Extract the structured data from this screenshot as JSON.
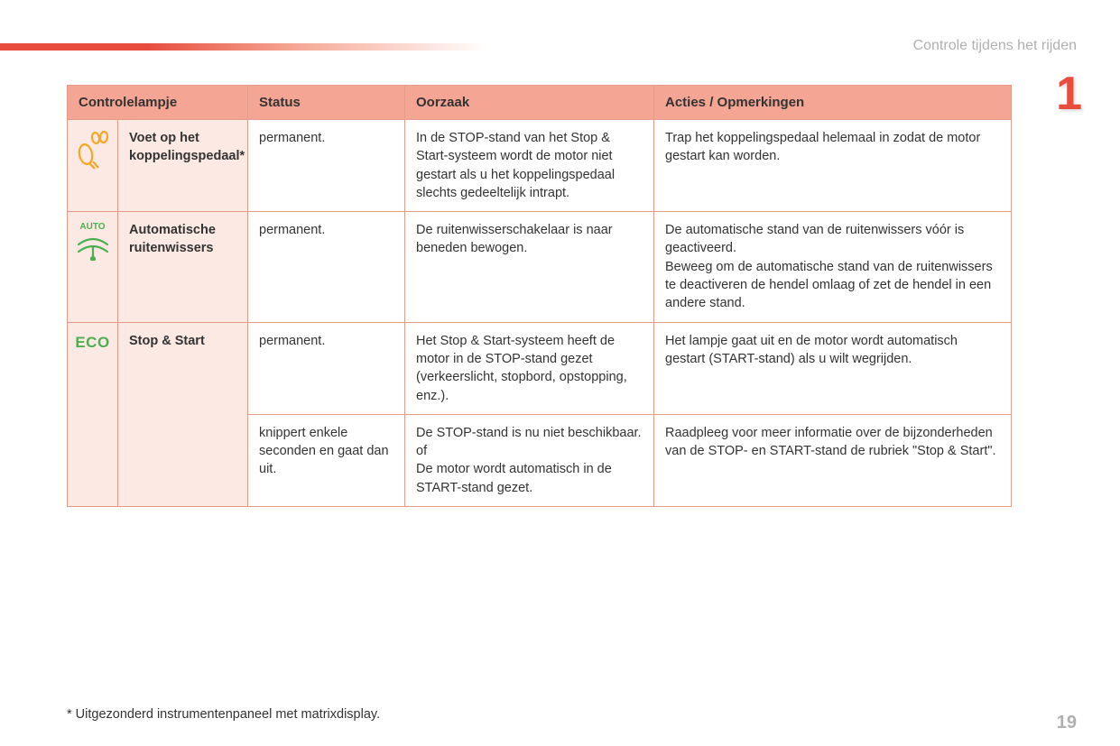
{
  "section_header": "Controle tijdens het rijden",
  "chapter_number": "1",
  "page_number": "19",
  "footnote": "* Uitgezonderd instrumentenpaneel met matrixdisplay.",
  "table": {
    "columns": {
      "controlelampje": "Controlelampje",
      "status": "Status",
      "oorzaak": "Oorzaak",
      "acties": "Acties / Opmerkingen"
    },
    "rows": [
      {
        "icon_name": "clutch-pedal-icon",
        "icon_color": "#f5a623",
        "label": "Voet op het koppelingspedaal*",
        "status": "permanent.",
        "cause": "In de STOP-stand van het Stop & Start-systeem wordt de motor niet gestart als u het koppelingspedaal slechts gedeeltelijk intrapt.",
        "action": "Trap het koppelingspedaal helemaal in zodat de motor gestart kan worden."
      },
      {
        "icon_name": "auto-wiper-icon",
        "icon_color": "#4caf50",
        "icon_top_label": "AUTO",
        "label": "Automatische ruitenwissers",
        "status": "permanent.",
        "cause": "De ruitenwisserschakelaar is naar beneden bewogen.",
        "action": "De automatische stand van de ruitenwissers vóór is geactiveerd.\nBeweeg om de automatische stand van de ruitenwissers te deactiveren de hendel omlaag of zet de hendel in een andere stand."
      },
      {
        "icon_name": "eco-icon",
        "icon_text": "ECO",
        "icon_color": "#4caf50",
        "label": "Stop & Start",
        "status": "permanent.",
        "cause": "Het Stop & Start-systeem heeft de motor in de STOP-stand gezet (verkeerslicht, stopbord, opstopping, enz.).",
        "action": "Het lampje gaat uit en de motor wordt automatisch gestart (START-stand) als u wilt wegrijden.",
        "sub": {
          "status": "knippert enkele seconden en gaat dan uit.",
          "cause": "De STOP-stand is nu niet beschikbaar.\nof\nDe motor wordt automatisch in de START-stand gezet.",
          "action": "Raadpleeg voor meer informatie over de bijzonderheden van de STOP- en START-stand de rubriek \"Stop & Start\"."
        }
      }
    ]
  },
  "styling": {
    "header_bg": "#f5a593",
    "icon_cell_bg": "#fce9e3",
    "border_color": "#e59b89",
    "text_color": "#333333",
    "accent_red": "#e74c3c",
    "muted_gray": "#b0b0b0",
    "page_bg": "#ffffff"
  }
}
